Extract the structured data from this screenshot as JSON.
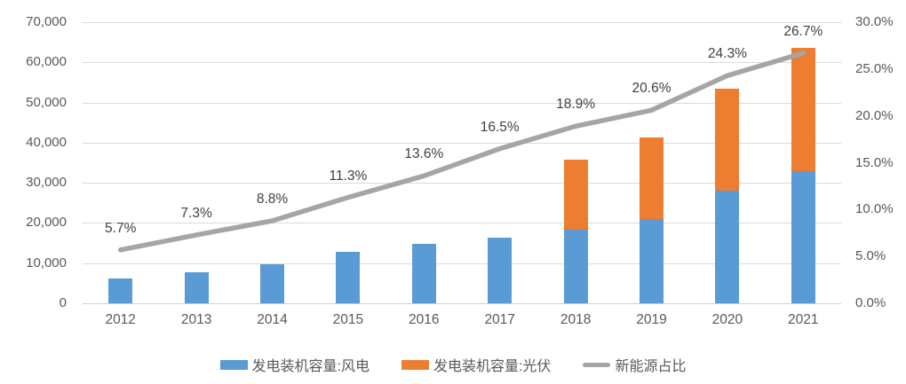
{
  "chart_data": {
    "type": "combo",
    "title": "",
    "categories": [
      "2012",
      "2013",
      "2014",
      "2015",
      "2016",
      "2017",
      "2018",
      "2019",
      "2020",
      "2021"
    ],
    "series": [
      {
        "name": "发电装机容量:风电",
        "type": "bar",
        "stack": "capacity",
        "axis": "left",
        "color": "#5B9BD5",
        "values": [
          6100,
          7650,
          9700,
          12900,
          14800,
          16400,
          18300,
          20900,
          28100,
          32800
        ]
      },
      {
        "name": "发电装机容量:光伏",
        "type": "bar",
        "stack": "capacity",
        "axis": "left",
        "color": "#ED7D31",
        "values": [
          0,
          0,
          0,
          0,
          0,
          0,
          17500,
          20500,
          25300,
          30700
        ]
      },
      {
        "name": "新能源占比",
        "type": "line",
        "axis": "right",
        "color": "#A5A5A5",
        "values": [
          5.7,
          7.3,
          8.8,
          11.3,
          13.6,
          16.5,
          18.9,
          20.6,
          24.3,
          26.7
        ],
        "labels": [
          "5.7%",
          "7.3%",
          "8.8%",
          "11.3%",
          "13.6%",
          "16.5%",
          "18.9%",
          "20.6%",
          "24.3%",
          "26.7%"
        ]
      }
    ],
    "left_axis": {
      "min": 0,
      "max": 70000,
      "ticks": [
        {
          "v": 0,
          "label": "0"
        },
        {
          "v": 10000,
          "label": "10,000"
        },
        {
          "v": 20000,
          "label": "20,000"
        },
        {
          "v": 30000,
          "label": "30,000"
        },
        {
          "v": 40000,
          "label": "40,000"
        },
        {
          "v": 50000,
          "label": "50,000"
        },
        {
          "v": 60000,
          "label": "60,000"
        },
        {
          "v": 70000,
          "label": "70,000"
        }
      ]
    },
    "right_axis": {
      "min": 0,
      "max": 30,
      "ticks": [
        {
          "v": 0,
          "label": "0.0%"
        },
        {
          "v": 5,
          "label": "5.0%"
        },
        {
          "v": 10,
          "label": "10.0%"
        },
        {
          "v": 15,
          "label": "15.0%"
        },
        {
          "v": 20,
          "label": "20.0%"
        },
        {
          "v": 25,
          "label": "25.0%"
        },
        {
          "v": 30,
          "label": "30.0%"
        }
      ]
    },
    "grid": true,
    "legend_position": "bottom",
    "legend": [
      {
        "label": "发电装机容量:风电",
        "swatch": "bar",
        "color": "#5B9BD5"
      },
      {
        "label": "发电装机容量:光伏",
        "swatch": "bar",
        "color": "#ED7D31"
      },
      {
        "label": "新能源占比",
        "swatch": "line",
        "color": "#A5A5A5"
      }
    ]
  },
  "colors": {
    "wind_bar": "#5B9BD5",
    "solar_bar": "#ED7D31",
    "share_line": "#A5A5A5",
    "gridline": "#DADADA",
    "axis_text": "#595959",
    "data_label_text": "#404040",
    "background": "#FFFFFF"
  }
}
